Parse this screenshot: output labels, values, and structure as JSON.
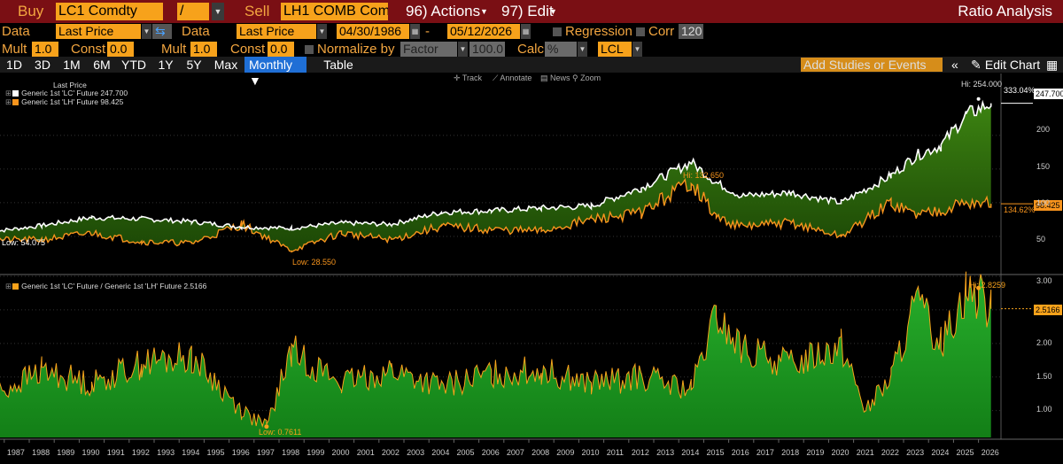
{
  "toolbar": {
    "buy_label": "Buy",
    "buy_ticker": "LC1 Comdty",
    "operator": "/",
    "sell_label": "Sell",
    "sell_ticker": "LH1 COMB Com",
    "actions": "96) Actions",
    "edit": "97) Edit",
    "title": "Ratio Analysis"
  },
  "settings": {
    "data_label_1": "Data",
    "data_value_1": "Last Price",
    "data_label_2": "Data",
    "data_value_2": "Last Price",
    "start_date": "04/30/1986",
    "dash": "-",
    "end_date": "05/12/2026",
    "regression_label": "Regression",
    "corr_label": "Corr",
    "corr_value": "120",
    "mult_label_1": "Mult",
    "mult_value_1": "1.0",
    "const_label_1": "Const",
    "const_value_1": "0.0",
    "mult_label_2": "Mult",
    "mult_value_2": "1.0",
    "const_label_2": "Const",
    "const_value_2": "0.0",
    "normalize_label": "Normalize by",
    "normalize_value": "Factor",
    "factor_value": "100.0",
    "calc_label": "Calc",
    "calc_value": "%",
    "lcl_value": "LCL"
  },
  "periods": [
    "1D",
    "3D",
    "1M",
    "6M",
    "YTD",
    "1Y",
    "5Y",
    "Max"
  ],
  "frequency": "Monthly",
  "table_tab": "Table",
  "search_placeholder": "Add Studies or Events",
  "edit_chart": "Edit Chart",
  "chart_tools": {
    "track": "Track",
    "annotate": "Annotate",
    "news": "News",
    "zoom": "Zoom"
  },
  "colors": {
    "lc": "#ffffff",
    "lh": "#f7941d",
    "fill_top": "#2f6d0e",
    "ratio": "#22a52a",
    "ratio_line": "#f7a21b",
    "accent": "#f7a21b",
    "header_bg": "#7a0f14"
  },
  "upper_legend": {
    "header": "Last Price",
    "items": [
      {
        "name": "Generic 1st 'LC' Future",
        "value": "247.700"
      },
      {
        "name": "Generic 1st 'LH' Future",
        "value": "98.425"
      }
    ]
  },
  "lower_legend": {
    "name": "Generic 1st 'LC' Future / Generic 1st 'LH' Future",
    "value": "2.5166"
  },
  "annotations": {
    "upper_hi": "Hi: 254.000",
    "upper_pct_top": "333.04%",
    "upper_low_lc": "Low: 54.075",
    "upper_low_lh": "Low: 28.550",
    "upper_hi_lh": "Hi: 132.650",
    "upper_pct_bottom": "134.62%",
    "last_lc": "247.700",
    "last_lh": "98.425",
    "lower_hi": "Hi: 2.8259",
    "lower_low": "Low: 0.7611",
    "last_ratio": "2.5166"
  },
  "chart_data": [
    {
      "type": "line",
      "title": "",
      "series": [
        {
          "name": "Generic 1st 'LC' Future",
          "x": [
            1986,
            1988,
            1990,
            1992,
            1994,
            1996,
            1998,
            2000,
            2002,
            2004,
            2006,
            2008,
            2010,
            2012,
            2014,
            2015,
            2016,
            2018,
            2020,
            2022,
            2023,
            2024,
            2025,
            2026
          ],
          "values": [
            57,
            66,
            78,
            76,
            72,
            64,
            62,
            70,
            68,
            86,
            88,
            92,
            95,
            122,
            160,
            130,
            110,
            115,
            100,
            140,
            170,
            185,
            230,
            247.7
          ]
        },
        {
          "name": "Generic 1st 'LH' Future",
          "x": [
            1986,
            1988,
            1990,
            1992,
            1994,
            1996,
            1998,
            2000,
            2002,
            2004,
            2006,
            2008,
            2010,
            2012,
            2014,
            2015,
            2016,
            2018,
            2020,
            2022,
            2023,
            2024,
            2025,
            2026
          ],
          "values": [
            45,
            45,
            55,
            42,
            40,
            68,
            29,
            55,
            45,
            65,
            60,
            58,
            75,
            85,
            132,
            78,
            65,
            70,
            50,
            100,
            82,
            90,
            100,
            98.425
          ]
        }
      ],
      "ylim": [
        0,
        280
      ],
      "yticks": [
        50,
        100,
        150,
        200
      ],
      "grid": true,
      "legend_position": "top-left"
    },
    {
      "type": "area",
      "series": [
        {
          "name": "Generic 1st 'LC' Future / Generic 1st 'LH' Future",
          "x": [
            1986,
            1988,
            1990,
            1992,
            1994,
            1996,
            1997,
            1998,
            2000,
            2002,
            2004,
            2006,
            2008,
            2010,
            2012,
            2014,
            2015,
            2016,
            2018,
            2020,
            2021,
            2022,
            2023,
            2024,
            2025,
            2025.5,
            2026
          ],
          "values": [
            1.2,
            1.6,
            1.4,
            1.7,
            1.8,
            1.0,
            0.7611,
            1.9,
            1.4,
            1.6,
            1.35,
            1.55,
            1.6,
            1.4,
            1.5,
            1.3,
            2.4,
            1.9,
            1.7,
            2.0,
            1.0,
            1.5,
            2.6,
            2.0,
            2.8259,
            2.7,
            2.5166
          ]
        }
      ],
      "ylim": [
        0.6,
        3.0
      ],
      "yticks": [
        1.0,
        1.5,
        2.0,
        2.5,
        3.0
      ],
      "grid": true,
      "legend_position": "top-left"
    }
  ],
  "x_axis_years": [
    "1987",
    "1988",
    "1989",
    "1990",
    "1991",
    "1992",
    "1993",
    "1994",
    "1995",
    "1996",
    "1997",
    "1998",
    "1999",
    "2000",
    "2001",
    "2002",
    "2003",
    "2004",
    "2005",
    "2006",
    "2007",
    "2008",
    "2009",
    "2010",
    "2011",
    "2012",
    "2013",
    "2014",
    "2015",
    "2016",
    "2017",
    "2018",
    "2019",
    "2020",
    "2021",
    "2022",
    "2023",
    "2024",
    "2025",
    "2026"
  ],
  "upper_y_labels": [
    "200",
    "150",
    "100",
    "50"
  ],
  "lower_y_labels": [
    "3.00",
    "2.50",
    "2.00",
    "1.50",
    "1.00"
  ]
}
